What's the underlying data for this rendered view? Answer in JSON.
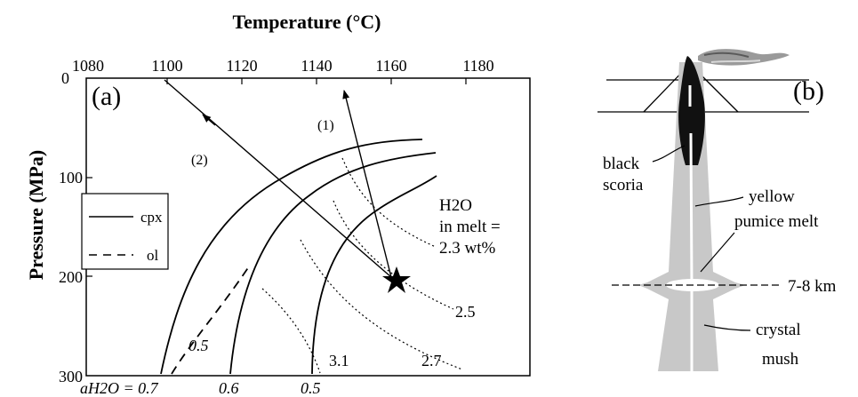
{
  "panel_a": {
    "title": "Temperature (°C)",
    "ylabel": "Pressure (MPa)",
    "panel_label": "(a)",
    "x_ticks": [
      "1080",
      "1100",
      "1120",
      "1140",
      "1160",
      "1180"
    ],
    "y_ticks": [
      "0",
      "100",
      "200",
      "300"
    ],
    "legend": {
      "cpx": "cpx",
      "ol": "ol"
    },
    "h2o_note": [
      "H2O",
      "in melt =",
      "2.3 wt%"
    ],
    "h2o_labels": [
      "2.5",
      "2.7",
      "3.1"
    ],
    "ah2o_prefix": "aH2O = 0.7",
    "ah2o_labels": [
      "0.6",
      "0.5"
    ],
    "ah2o_ol_label": "0.5",
    "path_labels": [
      "(1)",
      "(2)"
    ]
  },
  "panel_b": {
    "panel_label": "(b)",
    "labels": {
      "black_scoria": [
        "black",
        "scoria"
      ],
      "yellow_pumice": [
        "yellow",
        "pumice melt"
      ],
      "depth": "7-8 km",
      "crystal_mush": [
        "crystal",
        "mush"
      ]
    }
  },
  "colors": {
    "conduit": "#c8c8c8",
    "scoria": "#111111",
    "line": "#000000"
  }
}
